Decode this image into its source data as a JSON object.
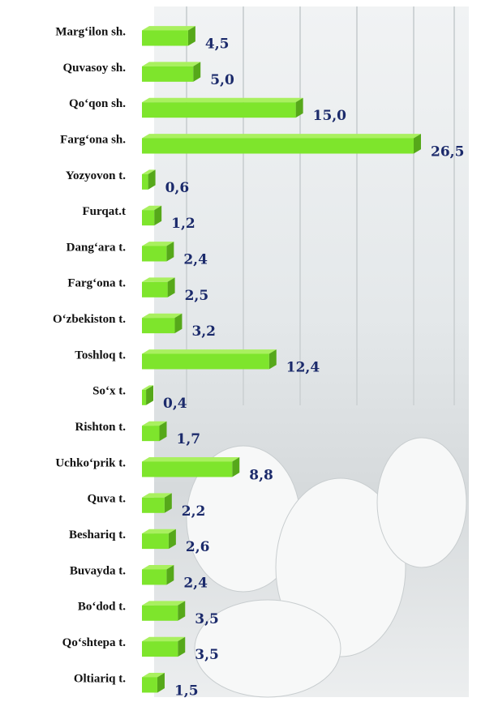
{
  "chart_data": {
    "type": "bar3d-horizontal",
    "categories": [
      "Marg‘ilon sh.",
      "Quvasoy sh.",
      "Qo‘qon sh.",
      "Farg‘ona sh.",
      "Yozyovon t.",
      "Furqat.t",
      "Dang‘ara t.",
      "Farg‘ona t.",
      "O‘zbekiston t.",
      "Toshloq t.",
      "So‘x t.",
      "Rishton t.",
      "Uchko‘prik t.",
      "Quva t.",
      "Beshariq t.",
      "Buvayda t.",
      "Bo‘dod t.",
      "Qo‘shtepa t.",
      "Oltiariq t."
    ],
    "values": [
      4.5,
      5.0,
      15.0,
      26.5,
      0.6,
      1.2,
      2.4,
      2.5,
      3.2,
      12.4,
      0.4,
      1.7,
      8.8,
      2.2,
      2.6,
      2.4,
      3.5,
      3.5,
      1.5
    ],
    "value_labels": [
      "4,5",
      "5,0",
      "15,0",
      "26,5",
      "0,6",
      "1,2",
      "2,4",
      "2,5",
      "3,2",
      "12,4",
      "0,4",
      "1,7",
      "8,8",
      "2,2",
      "2,6",
      "2,4",
      "3,5",
      "3,5",
      "1,5"
    ],
    "color": "#7ee52c"
  }
}
